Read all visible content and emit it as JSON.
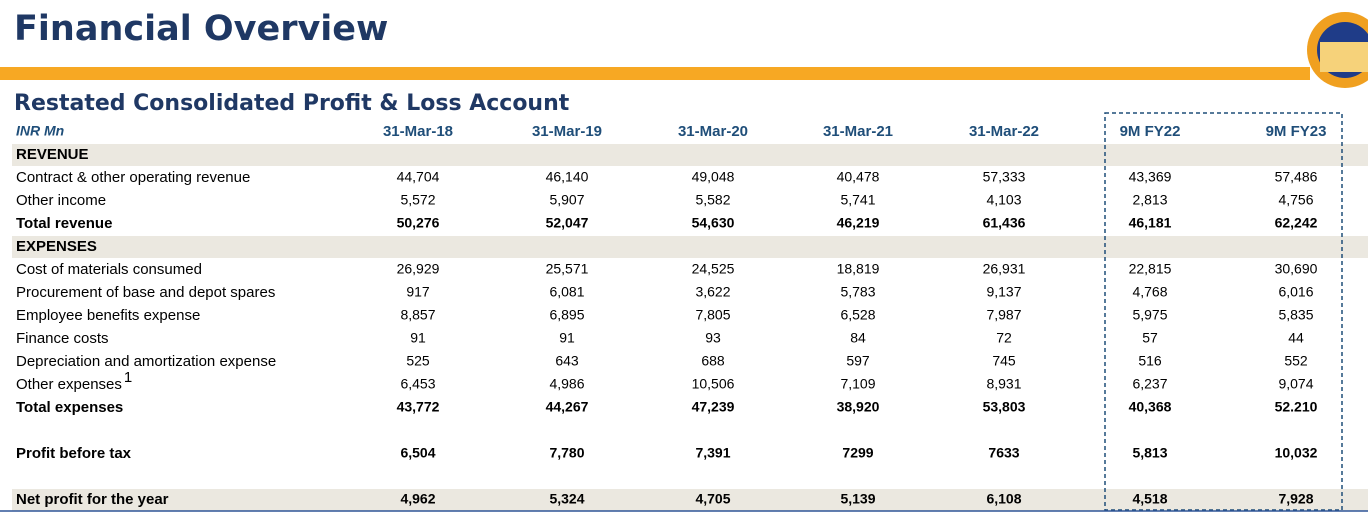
{
  "header": {
    "title": "Financial Overview",
    "subtitle": "Restated Consolidated Profit & Loss Account"
  },
  "table": {
    "unit": "INR Mn",
    "columns": [
      "31-Mar-18",
      "31-Mar-19",
      "31-Mar-20",
      "31-Mar-21",
      "31-Mar-22",
      "9M FY22",
      "9M FY23"
    ],
    "highlight_columns": [
      5,
      6
    ],
    "rows": [
      {
        "label": "REVENUE",
        "style": "section",
        "values": []
      },
      {
        "label": "Contract & other operating revenue",
        "style": "item",
        "values": [
          "44,704",
          "46,140",
          "49,048",
          "40,478",
          "57,333",
          "43,369",
          "57,486"
        ]
      },
      {
        "label": "Other income",
        "style": "item",
        "values": [
          "5,572",
          "5,907",
          "5,582",
          "5,741",
          "4,103",
          "2,813",
          "4,756"
        ]
      },
      {
        "label": "Total revenue",
        "style": "total",
        "values": [
          "50,276",
          "52,047",
          "54,630",
          "46,219",
          "61,436",
          "46,181",
          "62,242"
        ]
      },
      {
        "label": "EXPENSES",
        "style": "section",
        "values": []
      },
      {
        "label": "Cost of materials consumed",
        "style": "item",
        "values": [
          "26,929",
          "25,571",
          "24,525",
          "18,819",
          "26,931",
          "22,815",
          "30,690"
        ]
      },
      {
        "label": "Procurement of base and depot spares",
        "style": "item",
        "values": [
          "917",
          "6,081",
          "3,622",
          "5,783",
          "9,137",
          "4,768",
          "6,016"
        ]
      },
      {
        "label": "Employee benefits expense",
        "style": "item",
        "values": [
          "8,857",
          "6,895",
          "7,805",
          "6,528",
          "7,987",
          "5,975",
          "5,835"
        ]
      },
      {
        "label": "Finance costs",
        "style": "item",
        "values": [
          "91",
          "91",
          "93",
          "84",
          "72",
          "57",
          "44"
        ]
      },
      {
        "label": "Depreciation and amortization expense",
        "style": "item",
        "values": [
          "525",
          "643",
          "688",
          "597",
          "745",
          "516",
          "552"
        ]
      },
      {
        "label": "Other expenses",
        "note": "1",
        "style": "item",
        "values": [
          "6,453",
          "4,986",
          "10,506",
          "7,109",
          "8,931",
          "6,237",
          "9,074"
        ]
      },
      {
        "label": "Total expenses",
        "style": "total",
        "values": [
          "43,772",
          "44,267",
          "47,239",
          "38,920",
          "53,803",
          "40,368",
          "52.210"
        ]
      },
      {
        "label": "Profit before tax",
        "style": "result",
        "values": [
          "6,504",
          "7,780",
          "7,391",
          "7299",
          "7633",
          "5,813",
          "10,032"
        ]
      },
      {
        "label": "Net profit for the year",
        "style": "final",
        "values": [
          "4,962",
          "5,324",
          "4,705",
          "5,139",
          "6,108",
          "4,518",
          "7,928"
        ]
      }
    ]
  }
}
